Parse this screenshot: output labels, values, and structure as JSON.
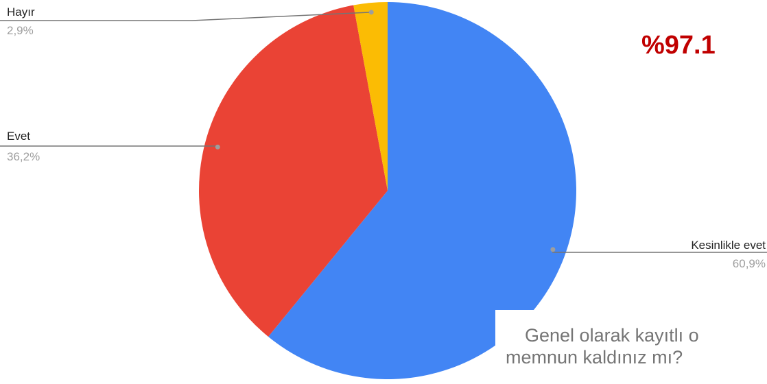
{
  "chart_data": {
    "type": "pie",
    "title_lines": [
      "Genel olarak kayıtlı o",
      "memnun kaldınız mı?"
    ],
    "annotation": "%97.1",
    "categories": [
      "Kesinlikle evet",
      "Evet",
      "Hayır"
    ],
    "values": [
      60.9,
      36.2,
      2.9
    ],
    "value_labels": [
      "60,9%",
      "36,2%",
      "2,9%"
    ],
    "colors": [
      "#4285f4",
      "#ea4335",
      "#fbbc04"
    ]
  }
}
